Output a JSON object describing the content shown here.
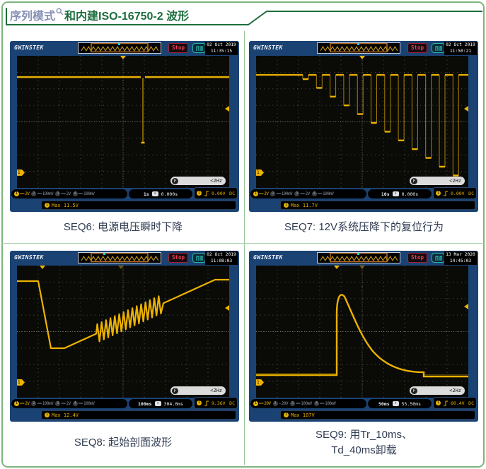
{
  "page": {
    "title_prefix": "序列模式",
    "title_main": "和内建ISO-16750-2 波形"
  },
  "scopes": [
    {
      "logo": "GWINSTEK",
      "acq_state": "Stop",
      "date": "02 Oct 2019",
      "time": "11:35:15",
      "freq_badge": "F",
      "freq_value": "<2Hz",
      "channels": [
        {
          "n": "1",
          "coupling": "==",
          "scale": "2V"
        },
        {
          "n": "2",
          "coupling": "==",
          "scale": "100mV"
        },
        {
          "n": "3",
          "coupling": "==",
          "scale": "2V"
        },
        {
          "n": "4",
          "coupling": "==",
          "scale": "100mV"
        }
      ],
      "timebase": "1s",
      "h_offset": "0.000s",
      "trigger_channel": "1",
      "trigger_level": "0.00V",
      "trigger_coupling": "DC",
      "channel_marker": "1",
      "meas_channel": "1",
      "measurement": "Max 11.5V",
      "caption": "SEQ6: 电源电压瞬时下降"
    },
    {
      "logo": "GWINSTEK",
      "acq_state": "Stop",
      "date": "02 Oct 2019",
      "time": "11:50:21",
      "freq_badge": "F",
      "freq_value": "<2Hz",
      "channels": [
        {
          "n": "1",
          "coupling": "==",
          "scale": "2V"
        },
        {
          "n": "2",
          "coupling": "==",
          "scale": "100mV"
        },
        {
          "n": "3",
          "coupling": "==",
          "scale": "2V"
        },
        {
          "n": "4",
          "coupling": "==",
          "scale": "100mV"
        }
      ],
      "timebase": "10s",
      "h_offset": "0.000s",
      "trigger_channel": "1",
      "trigger_level": "0.00V",
      "trigger_coupling": "DC",
      "channel_marker": "1",
      "meas_channel": "1",
      "measurement": "Max 11.7V",
      "caption": "SEQ7: 12V系统压降下的复位行为"
    },
    {
      "logo": "GWINSTEK",
      "acq_state": "Stop",
      "date": "02 Oct 2019",
      "time": "11:08:03",
      "freq_badge": "F",
      "freq_value": "<2Hz",
      "channels": [
        {
          "n": "1",
          "coupling": "==",
          "scale": "2V"
        },
        {
          "n": "2",
          "coupling": "==",
          "scale": "100mV"
        },
        {
          "n": "3",
          "coupling": "==",
          "scale": "2V"
        },
        {
          "n": "4",
          "coupling": "==",
          "scale": "100mV"
        }
      ],
      "timebase": "100ms",
      "h_offset": "304.0ms",
      "trigger_channel": "1",
      "trigger_level": "9.36V",
      "trigger_coupling": "DC",
      "channel_marker": "1",
      "meas_channel": "1",
      "measurement": "Max 12.4V",
      "caption": "SEQ8: 起始剖面波形"
    },
    {
      "logo": "GWINSTEK",
      "acq_state": "Stop",
      "date": "13 Mar 2020",
      "time": "14:45:03",
      "freq_badge": "F",
      "freq_value": "<2Hz",
      "channels": [
        {
          "n": "1",
          "coupling": "==",
          "scale": "20V"
        },
        {
          "n": "2",
          "coupling": "~",
          "scale": "20V"
        },
        {
          "n": "3",
          "coupling": "==",
          "scale": "100mV"
        },
        {
          "n": "4",
          "coupling": "==",
          "scale": "100mV"
        }
      ],
      "timebase": "50ms",
      "h_offset": "55.50ms",
      "trigger_channel": "1",
      "trigger_level": "60.4V",
      "trigger_coupling": "DC",
      "channel_marker": "1",
      "meas_channel": "1",
      "measurement": "Max 107V",
      "caption": "SEQ9: 用Tr_10ms、",
      "caption2": "Td_40ms卸载"
    }
  ]
}
